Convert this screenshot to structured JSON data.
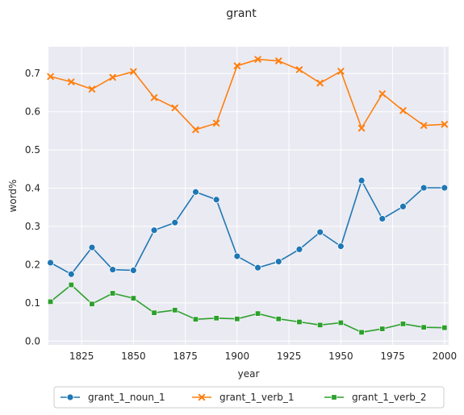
{
  "chart_data": {
    "type": "line",
    "title": "grant",
    "xlabel": "year",
    "ylabel": "word%",
    "xlim": [
      1809,
      2002
    ],
    "ylim": [
      -0.01,
      0.77
    ],
    "xticks": [
      1825,
      1850,
      1875,
      1900,
      1925,
      1950,
      1975,
      2000
    ],
    "yticks": [
      0.0,
      0.1,
      0.2,
      0.3,
      0.4,
      0.5,
      0.6,
      0.7
    ],
    "ytick_labels": [
      "0.0",
      "0.1",
      "0.2",
      "0.3",
      "0.4",
      "0.5",
      "0.6",
      "0.7"
    ],
    "grid": true,
    "legend_position": "bottom-center",
    "x": [
      1810,
      1820,
      1830,
      1840,
      1850,
      1860,
      1870,
      1880,
      1890,
      1900,
      1910,
      1920,
      1930,
      1940,
      1950,
      1960,
      1970,
      1980,
      1990,
      2000
    ],
    "series": [
      {
        "name": "grant_1_noun_1",
        "color": "#1f77b4",
        "marker": "circle",
        "values": [
          0.205,
          0.175,
          0.245,
          0.187,
          0.185,
          0.29,
          0.31,
          0.39,
          0.37,
          0.222,
          0.192,
          0.208,
          0.24,
          0.285,
          0.248,
          0.42,
          0.32,
          0.352,
          0.401,
          0.401
        ]
      },
      {
        "name": "grant_1_verb_1",
        "color": "#ff7f0e",
        "marker": "x",
        "values": [
          0.692,
          0.678,
          0.659,
          0.69,
          0.705,
          0.637,
          0.61,
          0.553,
          0.57,
          0.72,
          0.737,
          0.733,
          0.71,
          0.675,
          0.706,
          0.557,
          0.647,
          0.603,
          0.564,
          0.567
        ]
      },
      {
        "name": "grant_1_verb_2",
        "color": "#2ca02c",
        "marker": "square",
        "values": [
          0.103,
          0.147,
          0.097,
          0.125,
          0.112,
          0.074,
          0.081,
          0.057,
          0.06,
          0.058,
          0.072,
          0.058,
          0.05,
          0.042,
          0.048,
          0.023,
          0.032,
          0.045,
          0.036,
          0.035
        ]
      }
    ]
  }
}
